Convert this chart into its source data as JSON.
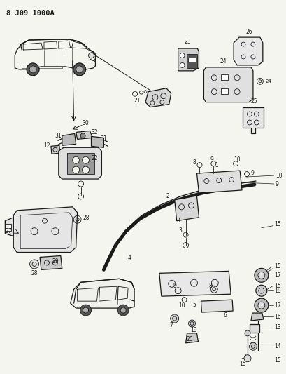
{
  "title": "8 J09 1000A",
  "bg_color": "#f5f5f0",
  "line_color": "#1a1a1a",
  "figsize": [
    4.09,
    5.33
  ],
  "dpi": 100
}
